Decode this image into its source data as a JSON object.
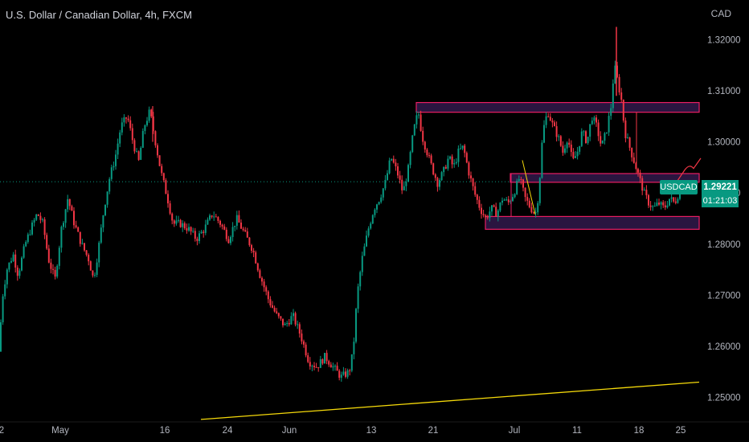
{
  "header": {
    "title": "U.S. Dollar / Canadian Dollar, 4h, FXCM",
    "currency": "CAD"
  },
  "price_badge": {
    "symbol": "USDCAD",
    "price": "1.29221",
    "countdown": "01:21:03"
  },
  "colors": {
    "background": "#000000",
    "up": "#089981",
    "down": "#f23645",
    "zone_fill": "#2a1540",
    "zone_border": "#e91e63",
    "trendline": "#f5d90a",
    "axis_text": "#b2b5be"
  },
  "chart_data": {
    "type": "candlestick",
    "symbol": "USDCAD",
    "interval": "4h",
    "source": "FXCM",
    "ylim": [
      1.246,
      1.3265
    ],
    "y_ticks": [
      1.25,
      1.26,
      1.27,
      1.28,
      1.29,
      1.3,
      1.31,
      1.32
    ],
    "y_tick_labels": [
      "1.25000",
      "1.26000",
      "1.27000",
      "1.28000",
      "1.29000",
      "1.30000",
      "1.31000",
      "1.32000"
    ],
    "x_tick_labels": [
      "2",
      "May",
      "16",
      "24",
      "Jun",
      "13",
      "21",
      "Jul",
      "11",
      "18",
      "25"
    ],
    "last_price": 1.29221,
    "price_path": [
      [
        0,
        1.259
      ],
      [
        5,
        1.27
      ],
      [
        10,
        1.275
      ],
      [
        18,
        1.278
      ],
      [
        24,
        1.274
      ],
      [
        33,
        1.28
      ],
      [
        40,
        1.283
      ],
      [
        48,
        1.286
      ],
      [
        55,
        1.284
      ],
      [
        62,
        1.277
      ],
      [
        70,
        1.273
      ],
      [
        78,
        1.283
      ],
      [
        86,
        1.289
      ],
      [
        94,
        1.284
      ],
      [
        103,
        1.28
      ],
      [
        112,
        1.277
      ],
      [
        118,
        1.273
      ],
      [
        124,
        1.279
      ],
      [
        131,
        1.287
      ],
      [
        138,
        1.293
      ],
      [
        145,
        1.297
      ],
      [
        152,
        1.303
      ],
      [
        160,
        1.305
      ],
      [
        167,
        1.3
      ],
      [
        174,
        1.296
      ],
      [
        181,
        1.303
      ],
      [
        188,
        1.306
      ],
      [
        195,
        1.3
      ],
      [
        202,
        1.294
      ],
      [
        210,
        1.289
      ],
      [
        217,
        1.284
      ],
      [
        226,
        1.284
      ],
      [
        236,
        1.283
      ],
      [
        246,
        1.281
      ],
      [
        256,
        1.283
      ],
      [
        266,
        1.286
      ],
      [
        276,
        1.284
      ],
      [
        286,
        1.281
      ],
      [
        296,
        1.285
      ],
      [
        306,
        1.282
      ],
      [
        316,
        1.279
      ],
      [
        325,
        1.274
      ],
      [
        336,
        1.269
      ],
      [
        346,
        1.266
      ],
      [
        356,
        1.264
      ],
      [
        366,
        1.266
      ],
      [
        376,
        1.262
      ],
      [
        386,
        1.257
      ],
      [
        396,
        1.256
      ],
      [
        406,
        1.258
      ],
      [
        416,
        1.256
      ],
      [
        426,
        1.254
      ],
      [
        436,
        1.255
      ],
      [
        441,
        1.259
      ],
      [
        446,
        1.27
      ],
      [
        452,
        1.277
      ],
      [
        460,
        1.283
      ],
      [
        467,
        1.287
      ],
      [
        474,
        1.289
      ],
      [
        481,
        1.292
      ],
      [
        488,
        1.297
      ],
      [
        496,
        1.294
      ],
      [
        503,
        1.29
      ],
      [
        510,
        1.295
      ],
      [
        516,
        1.302
      ],
      [
        522,
        1.306
      ],
      [
        527,
        1.301
      ],
      [
        533,
        1.298
      ],
      [
        539,
        1.295
      ],
      [
        546,
        1.292
      ],
      [
        553,
        1.294
      ],
      [
        560,
        1.297
      ],
      [
        566,
        1.295
      ],
      [
        572,
        1.298
      ],
      [
        578,
        1.299
      ],
      [
        585,
        1.294
      ],
      [
        592,
        1.29
      ],
      [
        599,
        1.287
      ],
      [
        606,
        1.285
      ],
      [
        613,
        1.287
      ],
      [
        620,
        1.286
      ],
      [
        627,
        1.289
      ],
      [
        634,
        1.288
      ],
      [
        641,
        1.29
      ],
      [
        648,
        1.293
      ],
      [
        655,
        1.289
      ],
      [
        662,
        1.287
      ],
      [
        668,
        1.286
      ],
      [
        672,
        1.29
      ],
      [
        677,
        1.302
      ],
      [
        683,
        1.306
      ],
      [
        690,
        1.303
      ],
      [
        696,
        1.301
      ],
      [
        702,
        1.298
      ],
      [
        708,
        1.301
      ],
      [
        714,
        1.296
      ],
      [
        720,
        1.298
      ],
      [
        726,
        1.302
      ],
      [
        732,
        1.3
      ],
      [
        738,
        1.305
      ],
      [
        744,
        1.303
      ],
      [
        750,
        1.299
      ],
      [
        756,
        1.302
      ],
      [
        762,
        1.307
      ],
      [
        766,
        1.315
      ],
      [
        770,
        1.312
      ],
      [
        775,
        1.308
      ],
      [
        779,
        1.302
      ],
      [
        785,
        1.299
      ],
      [
        791,
        1.296
      ],
      [
        797,
        1.293
      ],
      [
        803,
        1.29
      ],
      [
        809,
        1.288
      ],
      [
        815,
        1.287
      ],
      [
        821,
        1.288
      ],
      [
        828,
        1.287
      ],
      [
        835,
        1.289
      ],
      [
        841,
        1.288
      ],
      [
        846,
        1.29
      ]
    ],
    "zones": [
      {
        "from_x": 518,
        "to_x": 870,
        "top": 1.3077,
        "bottom": 1.3058
      },
      {
        "from_x": 635,
        "to_x": 870,
        "top": 1.2938,
        "bottom": 1.2921
      },
      {
        "from_x": 604,
        "to_x": 870,
        "top": 1.2854,
        "bottom": 1.2829
      }
    ],
    "trendline": {
      "from": [
        250,
        1.2457
      ],
      "to": [
        870,
        1.253
      ]
    }
  }
}
